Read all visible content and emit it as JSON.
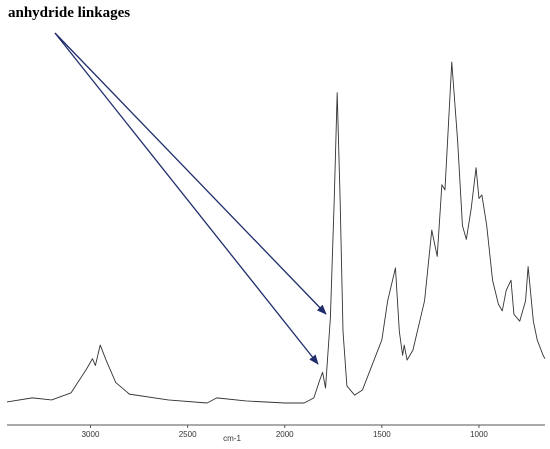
{
  "chart_data": {
    "type": "line",
    "annotation": "anhydride linkages",
    "x_label": "cm-1",
    "xlim": [
      3430,
      660
    ],
    "xticks": [
      3000,
      2500,
      2000,
      1500,
      1000
    ],
    "ylim": [
      0,
      100
    ],
    "color": "#333333",
    "x": [
      3430,
      3300,
      3200,
      3100,
      3020,
      2990,
      2975,
      2950,
      2920,
      2870,
      2800,
      2600,
      2400,
      2350,
      2200,
      2000,
      1900,
      1850,
      1820,
      1805,
      1790,
      1765,
      1745,
      1730,
      1715,
      1700,
      1680,
      1640,
      1600,
      1560,
      1500,
      1470,
      1430,
      1410,
      1393,
      1385,
      1370,
      1340,
      1280,
      1243,
      1215,
      1191,
      1175,
      1140,
      1110,
      1085,
      1065,
      1040,
      1015,
      1000,
      985,
      960,
      930,
      900,
      880,
      860,
      835,
      820,
      790,
      760,
      747,
      720,
      700,
      670,
      660
    ],
    "values": [
      0.3,
      1.5,
      0.9,
      3,
      10,
      13,
      11,
      17,
      12.6,
      6,
      2.6,
      0.9,
      0,
      1.5,
      0.6,
      0,
      0,
      1.5,
      6.7,
      9,
      4.4,
      25,
      60,
      91,
      60,
      21,
      5,
      2.3,
      3.8,
      9.7,
      18.5,
      30,
      39.6,
      21,
      14,
      17,
      12.6,
      15.5,
      30,
      50.7,
      43,
      64,
      62.5,
      100,
      77,
      52,
      48,
      57,
      69,
      60,
      61,
      52,
      36,
      29,
      27,
      33,
      36,
      26,
      24,
      30,
      40,
      24,
      18.5,
      14,
      13
    ]
  }
}
